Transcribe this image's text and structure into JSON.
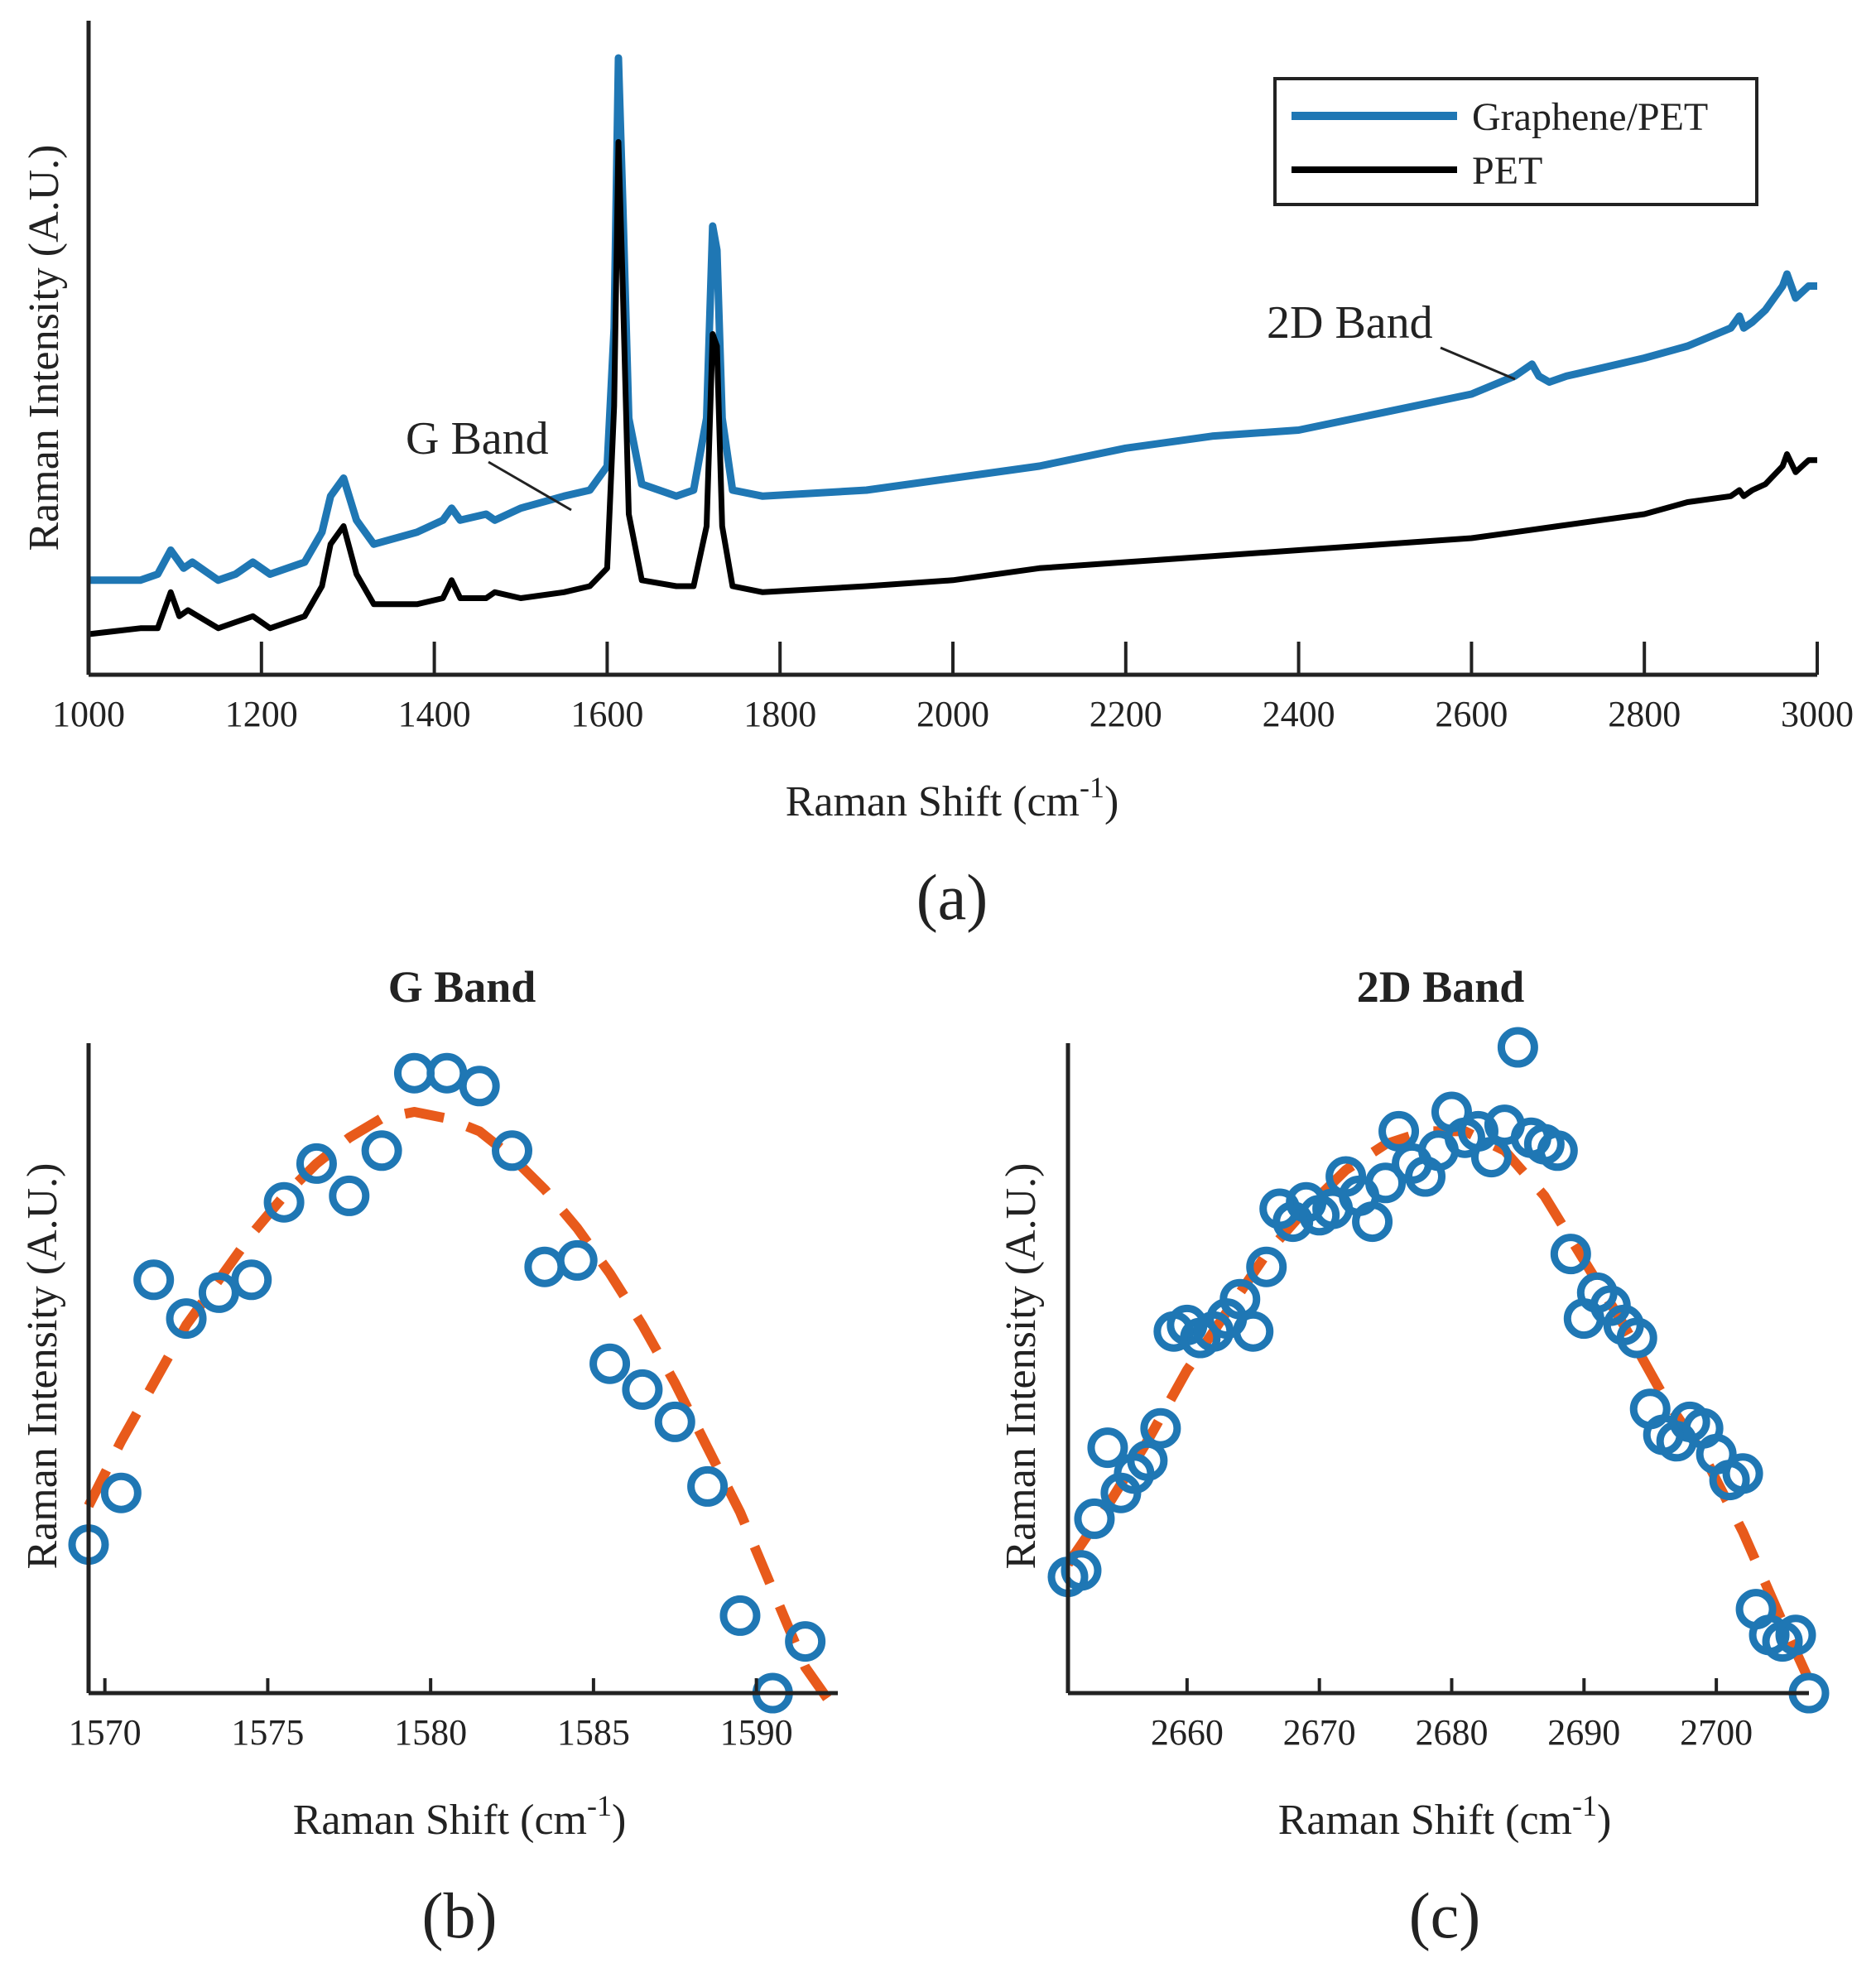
{
  "chart_data": [
    {
      "id": "a",
      "type": "line",
      "panel_label": "(a)",
      "title": "",
      "xlabel": "Raman Shift (cm",
      "xlabel_sup": "-1",
      "xlabel_close": ")",
      "ylabel": "Raman Intensity (A.U.)",
      "xlim": [
        1000,
        3000
      ],
      "ylim": [
        0,
        100
      ],
      "xticks": [
        1000,
        1200,
        1400,
        1600,
        1800,
        2000,
        2200,
        2400,
        2600,
        2800,
        3000
      ],
      "xtick_labels": [
        "1000",
        "1200",
        "1400",
        "1600",
        "1800",
        "2000",
        "2200",
        "2400",
        "2600",
        "2800",
        "3000"
      ],
      "legend": {
        "position": "top-right",
        "entries": [
          "Graphene/PET",
          "PET"
        ]
      },
      "annotations": [
        {
          "text": "G Band",
          "x": 1560,
          "y": 28
        },
        {
          "text": "2D Band",
          "x": 2640,
          "y": 48
        }
      ],
      "series": [
        {
          "name": "Graphene/PET",
          "color": "#1f77b4",
          "x": [
            1000,
            1060,
            1080,
            1095,
            1110,
            1120,
            1150,
            1170,
            1190,
            1210,
            1250,
            1270,
            1280,
            1295,
            1310,
            1330,
            1380,
            1410,
            1420,
            1430,
            1460,
            1470,
            1500,
            1550,
            1580,
            1600,
            1608,
            1613,
            1618,
            1625,
            1640,
            1680,
            1700,
            1715,
            1722,
            1727,
            1733,
            1745,
            1780,
            1900,
            2000,
            2100,
            2200,
            2300,
            2400,
            2500,
            2600,
            2650,
            2670,
            2678,
            2690,
            2710,
            2800,
            2850,
            2900,
            2910,
            2915,
            2925,
            2940,
            2960,
            2965,
            2975,
            2990,
            3000
          ],
          "y": [
            13,
            13,
            14,
            18,
            15,
            16,
            13,
            14,
            16,
            14,
            16,
            21,
            27,
            30,
            23,
            19,
            21,
            23,
            25,
            23,
            24,
            23,
            25,
            27,
            28,
            32,
            55,
            100,
            76,
            40,
            29,
            27,
            28,
            40,
            72,
            68,
            40,
            28,
            27,
            28,
            30,
            32,
            35,
            37,
            38,
            41,
            44,
            47,
            49,
            47,
            46,
            47,
            50,
            52,
            55,
            57,
            55,
            56,
            58,
            62,
            64,
            60,
            62,
            62
          ]
        },
        {
          "name": "PET",
          "color": "#000000",
          "x": [
            1000,
            1060,
            1080,
            1095,
            1105,
            1115,
            1150,
            1170,
            1190,
            1210,
            1250,
            1270,
            1280,
            1295,
            1310,
            1330,
            1380,
            1410,
            1420,
            1430,
            1460,
            1470,
            1500,
            1550,
            1580,
            1600,
            1608,
            1613,
            1618,
            1625,
            1640,
            1680,
            1700,
            1715,
            1722,
            1727,
            1733,
            1745,
            1780,
            1900,
            2000,
            2100,
            2200,
            2300,
            2400,
            2500,
            2600,
            2650,
            2700,
            2800,
            2850,
            2900,
            2910,
            2915,
            2925,
            2940,
            2960,
            2965,
            2975,
            2990,
            3000
          ],
          "y": [
            4,
            5,
            5,
            11,
            7,
            8,
            5,
            6,
            7,
            5,
            7,
            12,
            19,
            22,
            14,
            9,
            9,
            10,
            13,
            10,
            10,
            11,
            10,
            11,
            12,
            15,
            42,
            86,
            62,
            24,
            13,
            12,
            12,
            22,
            54,
            52,
            22,
            12,
            11,
            12,
            13,
            15,
            16,
            17,
            18,
            19,
            20,
            21,
            22,
            24,
            26,
            27,
            28,
            27,
            28,
            29,
            32,
            34,
            31,
            33,
            33
          ]
        }
      ]
    },
    {
      "id": "b",
      "type": "scatter",
      "panel_label": "(b)",
      "title": "G Band",
      "xlabel": "Raman Shift (cm",
      "xlabel_sup": "-1",
      "xlabel_close": ")",
      "ylabel": "Raman Intensity (A.U.)",
      "xlim": [
        1569.5,
        1592.5
      ],
      "ylim": [
        0,
        100
      ],
      "xticks": [
        1570,
        1575,
        1580,
        1585,
        1590
      ],
      "xtick_labels": [
        "1570",
        "1575",
        "1580",
        "1585",
        "1590"
      ],
      "series": [
        {
          "name": "data",
          "marker": "circle-open",
          "color": "#1f77b4",
          "x": [
            1569.5,
            1570.5,
            1571.5,
            1572.5,
            1573.5,
            1574.5,
            1575.5,
            1576.5,
            1577.5,
            1578.5,
            1579.5,
            1580.5,
            1581.5,
            1582.5,
            1583.5,
            1584.5,
            1585.5,
            1586.5,
            1587.5,
            1588.5,
            1589.5,
            1590.5,
            1591.5
          ],
          "y": [
            23,
            31,
            64,
            58,
            62,
            64,
            76,
            82,
            77,
            84,
            96,
            96,
            94,
            84,
            66,
            67,
            51,
            47,
            42,
            32,
            12,
            0,
            8
          ]
        },
        {
          "name": "fit",
          "line": "dashed",
          "color": "#e85a1b",
          "x": [
            1569.5,
            1570.5,
            1571.5,
            1572.5,
            1573.5,
            1574.5,
            1575.5,
            1576.5,
            1577.5,
            1578.5,
            1579.5,
            1580.5,
            1581.5,
            1582.5,
            1583.5,
            1584.5,
            1585.5,
            1586.5,
            1587.5,
            1588.5,
            1589.5,
            1590.5,
            1591.5,
            1592.2
          ],
          "y": [
            29,
            39,
            48,
            57,
            64,
            71,
            77,
            82,
            86,
            89,
            90,
            89,
            87,
            83,
            78,
            72,
            65,
            57,
            48,
            38,
            28,
            16,
            4,
            -1
          ]
        }
      ]
    },
    {
      "id": "c",
      "type": "scatter",
      "panel_label": "(c)",
      "title": "2D Band",
      "xlabel": "Raman Shift (cm",
      "xlabel_sup": "-1",
      "xlabel_close": ")",
      "ylabel": "Raman Intensity (A.U.)",
      "xlim": [
        2651,
        2707
      ],
      "ylim": [
        0,
        100
      ],
      "xticks": [
        2660,
        2670,
        2680,
        2690,
        2700
      ],
      "xtick_labels": [
        "2660",
        "2670",
        "2680",
        "2690",
        "2700"
      ],
      "series": [
        {
          "name": "data",
          "marker": "circle-open",
          "color": "#1f77b4",
          "x": [
            2651,
            2652,
            2653,
            2654,
            2655,
            2656,
            2657,
            2658,
            2659,
            2660,
            2661,
            2662,
            2663,
            2664,
            2665,
            2666,
            2667,
            2668,
            2669,
            2670,
            2671,
            2672,
            2673,
            2674,
            2675,
            2676,
            2677,
            2678,
            2679,
            2680,
            2681,
            2682,
            2683,
            2684,
            2685,
            2686,
            2687,
            2688,
            2689,
            2690,
            2691,
            2692,
            2693,
            2694,
            2695,
            2696,
            2697,
            2698,
            2699,
            2700,
            2701,
            2702,
            2703,
            2704,
            2705,
            2706,
            2707
          ],
          "y": [
            18,
            19,
            27,
            38,
            31,
            34,
            36,
            41,
            56,
            57,
            55,
            56,
            58,
            61,
            56,
            66,
            75,
            73,
            76,
            74,
            75,
            80,
            77,
            73,
            79,
            87,
            82,
            80,
            84,
            90,
            86,
            87,
            83,
            88,
            100,
            86,
            85,
            84,
            68,
            58,
            62,
            60,
            57,
            55,
            44,
            40,
            39,
            42,
            41,
            37,
            33,
            34,
            13,
            9,
            8,
            9,
            0
          ]
        },
        {
          "name": "fit",
          "line": "dashed",
          "color": "#e85a1b",
          "x": [
            2651,
            2654,
            2657,
            2660,
            2663,
            2666,
            2669,
            2672,
            2675,
            2678,
            2681,
            2684,
            2687,
            2690,
            2693,
            2696,
            2699,
            2702,
            2705,
            2707
          ],
          "y": [
            20,
            29,
            39,
            50,
            59,
            68,
            75,
            81,
            85,
            87,
            87,
            84,
            77,
            67,
            57,
            46,
            37,
            25,
            11,
            2
          ]
        }
      ]
    }
  ]
}
